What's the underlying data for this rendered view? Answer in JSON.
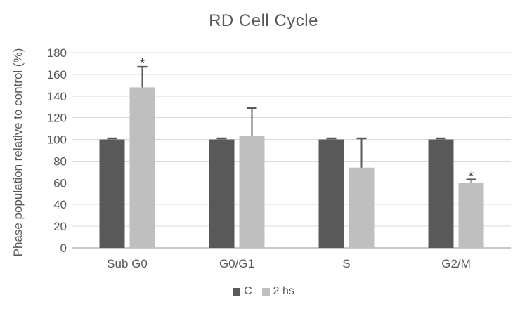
{
  "chart_data": {
    "type": "bar",
    "title": "RD Cell Cycle",
    "ylabel": "Phase population relative to control (%)",
    "xlabel": "",
    "categories": [
      "Sub G0",
      "G0/G1",
      "S",
      "G2/M"
    ],
    "series": [
      {
        "name": "C",
        "color": "#595959",
        "values": [
          100,
          100,
          100,
          100
        ],
        "errors": [
          1,
          1,
          1,
          1
        ],
        "significance": [
          "",
          "",
          "",
          ""
        ]
      },
      {
        "name": "2 hs",
        "color": "#bfbfbf",
        "values": [
          148,
          103,
          74,
          60
        ],
        "errors": [
          19,
          26,
          27,
          3
        ],
        "significance": [
          "*",
          "",
          "",
          "*"
        ]
      }
    ],
    "ylim": [
      0,
      180
    ],
    "yticks": [
      0,
      20,
      40,
      60,
      80,
      100,
      120,
      140,
      160,
      180
    ],
    "grid": true,
    "legend_position": "bottom"
  },
  "colors": {
    "text": "#595959",
    "significance": "#404040",
    "gridline": "#d9d9d9",
    "axis_line": "#c9c9c9",
    "error_bar": "#595959",
    "background": "#ffffff"
  }
}
